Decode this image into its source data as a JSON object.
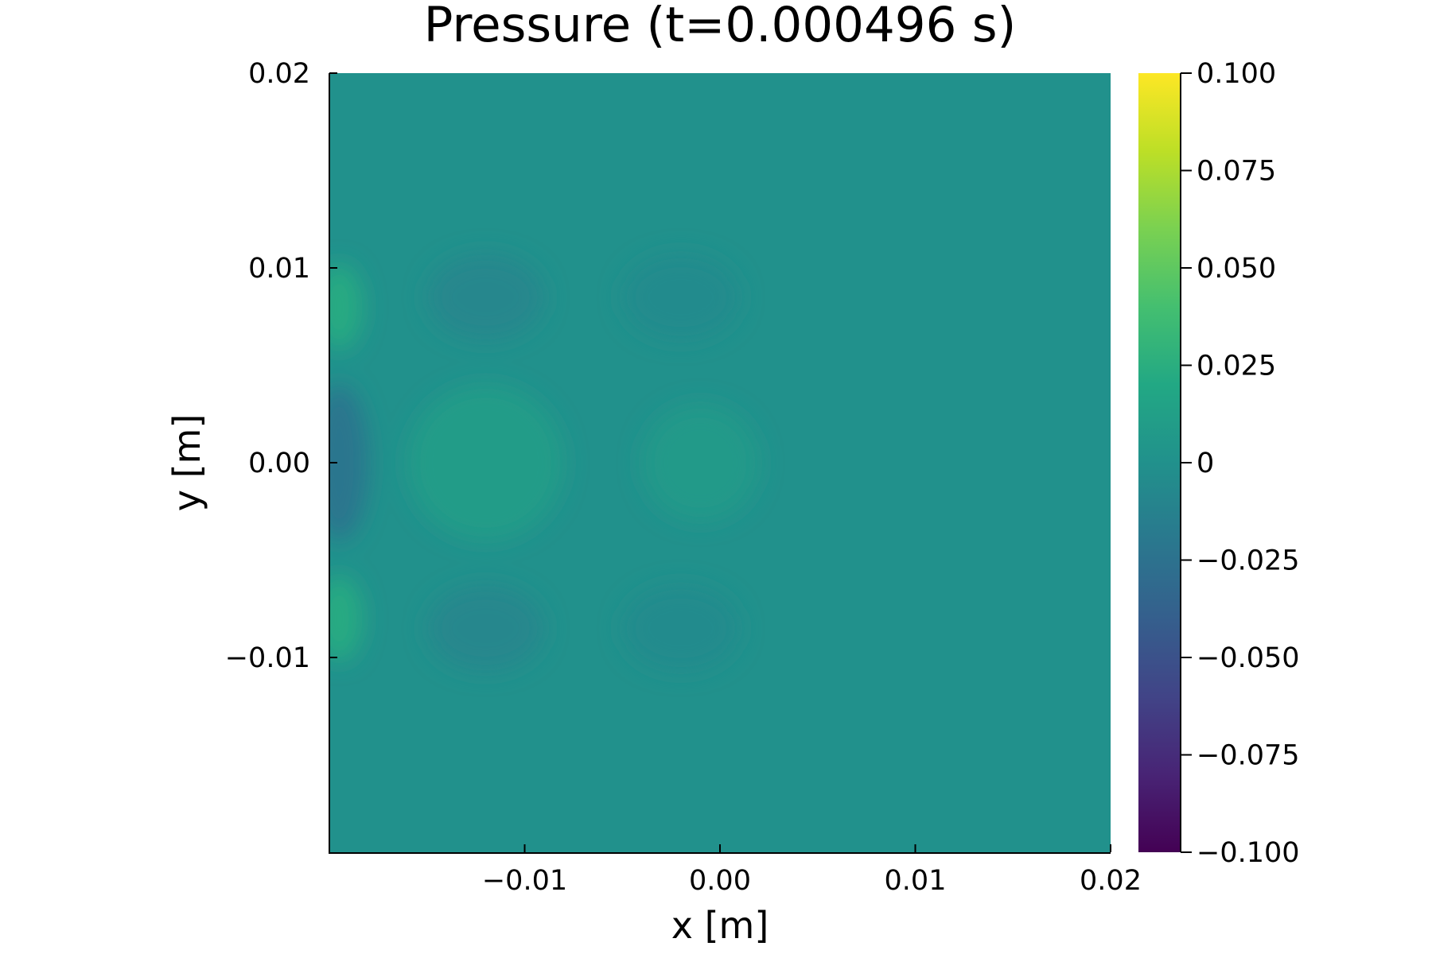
{
  "chart_data": {
    "type": "heatmap",
    "title": "Pressure (t=0.000496 s)",
    "xlabel": "x [m]",
    "ylabel": "y [m]",
    "xlim": [
      -0.02,
      0.02
    ],
    "ylim": [
      -0.02,
      0.02
    ],
    "x_ticks": [
      {
        "value": -0.01,
        "label": "−0.01"
      },
      {
        "value": 0.0,
        "label": "0.00"
      },
      {
        "value": 0.01,
        "label": "0.01"
      },
      {
        "value": 0.02,
        "label": "0.02"
      }
    ],
    "y_ticks": [
      {
        "value": -0.01,
        "label": "−0.01"
      },
      {
        "value": 0.0,
        "label": "0.00"
      },
      {
        "value": 0.01,
        "label": "0.01"
      },
      {
        "value": 0.02,
        "label": "0.02"
      }
    ],
    "colorbar": {
      "colormap": "viridis",
      "range": [
        -0.1,
        0.1
      ],
      "ticks": [
        {
          "value": 0.1,
          "label": "0.100"
        },
        {
          "value": 0.075,
          "label": "0.075"
        },
        {
          "value": 0.05,
          "label": "0.050"
        },
        {
          "value": 0.025,
          "label": "0.025"
        },
        {
          "value": 0.0,
          "label": "0"
        },
        {
          "value": -0.025,
          "label": "−0.025"
        },
        {
          "value": -0.05,
          "label": "−0.050"
        },
        {
          "value": -0.075,
          "label": "−0.075"
        },
        {
          "value": -0.1,
          "label": "−0.100"
        }
      ]
    },
    "background_value": 0.0,
    "field_features": [
      {
        "x": -0.0195,
        "y": 0.0,
        "rx": 0.0015,
        "ry": 0.004,
        "value": -0.022
      },
      {
        "x": -0.0195,
        "y": 0.008,
        "rx": 0.0012,
        "ry": 0.0022,
        "value": 0.022
      },
      {
        "x": -0.0195,
        "y": -0.008,
        "rx": 0.0012,
        "ry": 0.0022,
        "value": 0.022
      },
      {
        "x": -0.012,
        "y": 0.0,
        "rx": 0.004,
        "ry": 0.004,
        "value": 0.01
      },
      {
        "x": -0.012,
        "y": 0.0085,
        "rx": 0.003,
        "ry": 0.0022,
        "value": -0.008
      },
      {
        "x": -0.012,
        "y": -0.0085,
        "rx": 0.003,
        "ry": 0.0022,
        "value": -0.008
      },
      {
        "x": -0.001,
        "y": 0.0,
        "rx": 0.003,
        "ry": 0.003,
        "value": 0.008
      },
      {
        "x": -0.002,
        "y": 0.0085,
        "rx": 0.003,
        "ry": 0.0022,
        "value": -0.005
      },
      {
        "x": -0.002,
        "y": -0.0085,
        "rx": 0.003,
        "ry": 0.0022,
        "value": -0.005
      }
    ]
  }
}
